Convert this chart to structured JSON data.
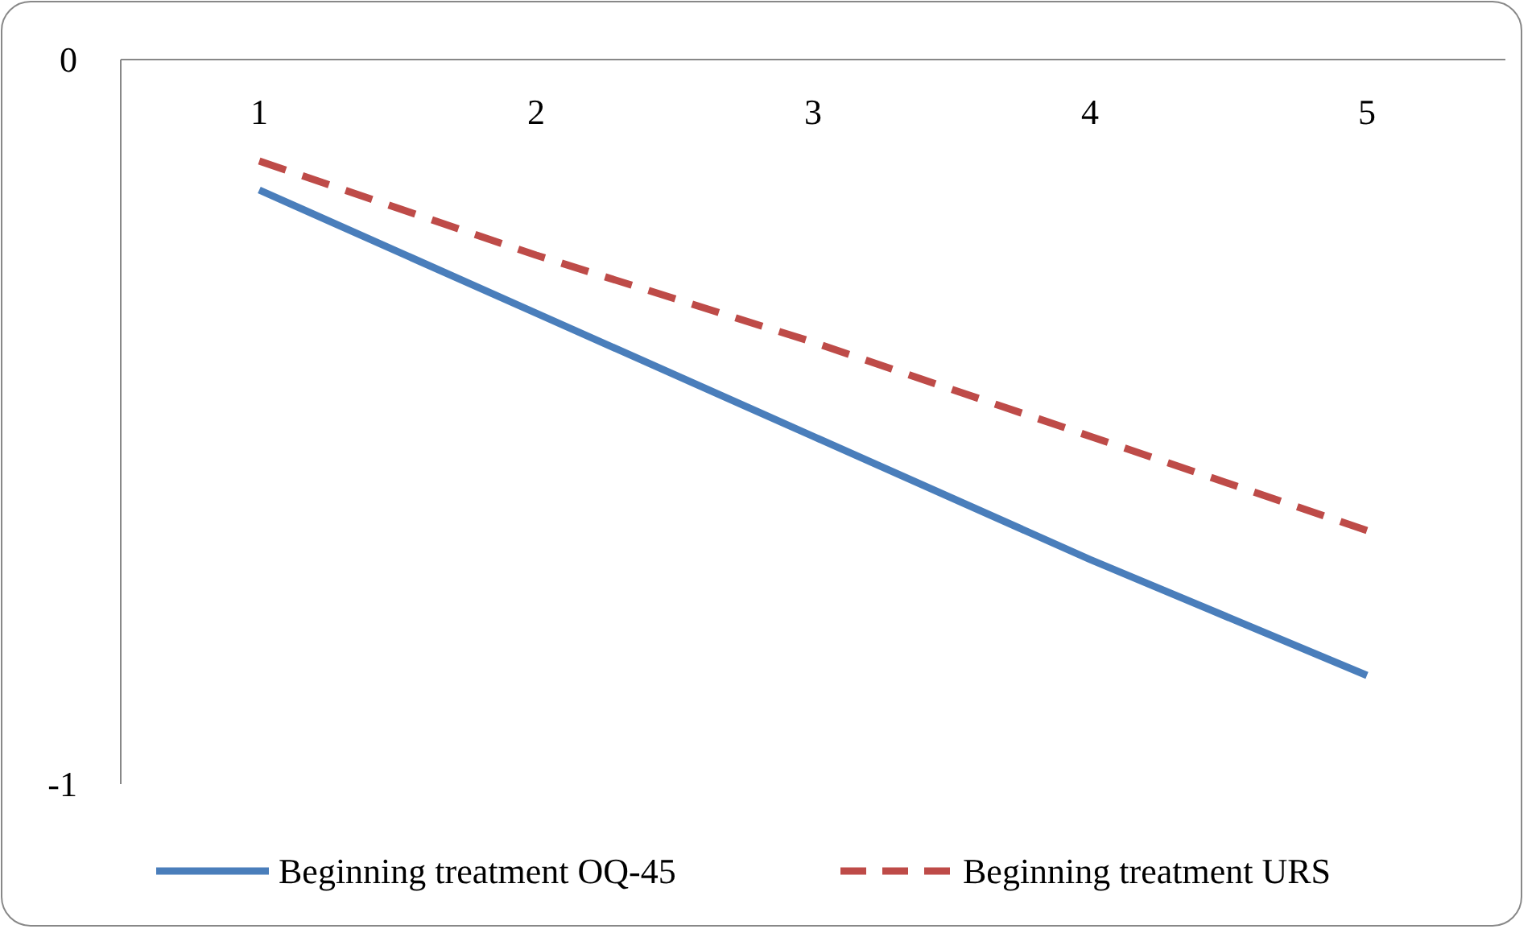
{
  "chart_data": {
    "type": "line",
    "categories": [
      "1",
      "2",
      "3",
      "4",
      "5"
    ],
    "series": [
      {
        "name": "Beginning treatment OQ-45",
        "color": "#4a7ebb",
        "line_style": "solid",
        "values": [
          -0.18,
          -0.35,
          -0.52,
          -0.69,
          -0.85
        ]
      },
      {
        "name": "Beginning treatment URS",
        "color": "#be4b48",
        "line_style": "dashed",
        "values": [
          -0.14,
          -0.27,
          -0.39,
          -0.52,
          -0.65
        ]
      }
    ],
    "ylim": [
      -1,
      0
    ],
    "yticks": [
      0,
      -1
    ],
    "legend": "bottom",
    "grid": false,
    "marker": "none"
  }
}
